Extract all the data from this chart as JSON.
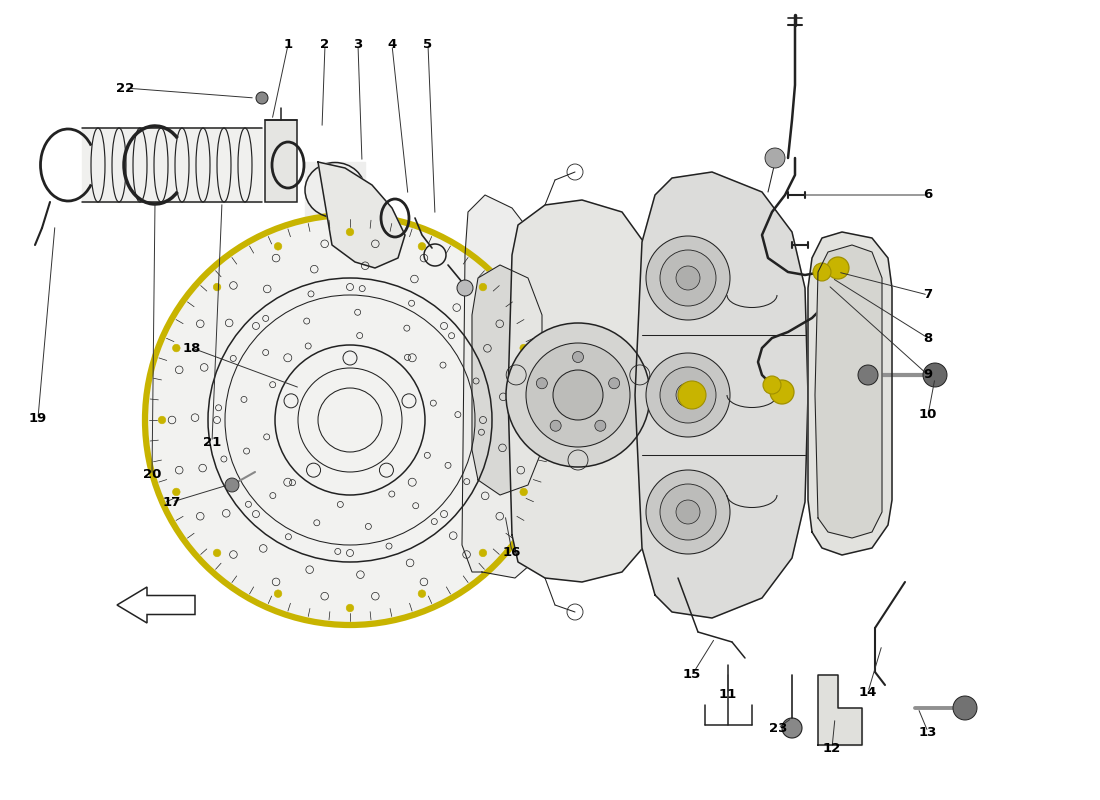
{
  "background_color": "#ffffff",
  "line_color": "#222222",
  "label_color": "#000000",
  "figsize": [
    11.0,
    8.0
  ],
  "dpi": 100,
  "xlim": [
    0,
    11
  ],
  "ylim": [
    0,
    8
  ],
  "watermark_color": "#c8c4b0",
  "watermark_alpha": 0.3,
  "yellow_color": "#c8b400",
  "grey_fill": "#e8e8e8",
  "light_fill": "#f2f2f0"
}
